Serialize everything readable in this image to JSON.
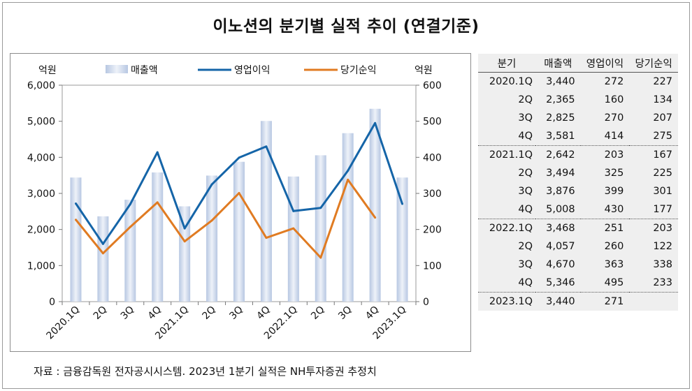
{
  "title": "이노션의 분기별 실적 추이 (연결기준)",
  "source": "자료 : 금융감독원 전자공시시스템. 2023년 1분기 실적은 NH투자증권 추정치",
  "chart_data": {
    "type": "bar+line",
    "categories": [
      "2020.1Q",
      "2Q",
      "3Q",
      "4Q",
      "2021.1Q",
      "2Q",
      "3Q",
      "4Q",
      "2022.1Q",
      "2Q",
      "3Q",
      "4Q",
      "2023.1Q"
    ],
    "left_axis": {
      "label": "억원",
      "min": 0,
      "max": 6000,
      "ticks": [
        "0",
        "1,000",
        "2,000",
        "3,000",
        "4,000",
        "5,000",
        "6,000"
      ]
    },
    "right_axis": {
      "label": "억원",
      "min": 0,
      "max": 600,
      "ticks": [
        "0",
        "100",
        "200",
        "300",
        "400",
        "500",
        "600"
      ]
    },
    "legend_position": "top",
    "grid": false,
    "series": [
      {
        "name": "매출액",
        "type": "bar",
        "axis": "left",
        "color": "#c9d6ea",
        "values": [
          3440,
          2365,
          2825,
          3581,
          2642,
          3494,
          3876,
          5008,
          3468,
          4057,
          4670,
          5346,
          3440
        ]
      },
      {
        "name": "영업이익",
        "type": "line",
        "axis": "right",
        "color": "#1565a8",
        "values": [
          272,
          160,
          270,
          414,
          203,
          325,
          399,
          430,
          251,
          260,
          363,
          495,
          271
        ]
      },
      {
        "name": "당기순익",
        "type": "line",
        "axis": "right",
        "color": "#e07b22",
        "values": [
          227,
          134,
          207,
          275,
          167,
          225,
          301,
          177,
          203,
          122,
          338,
          233,
          null
        ]
      }
    ]
  },
  "table": {
    "headers": [
      "분기",
      "매출액",
      "영업이익",
      "당기순익"
    ],
    "rows": [
      [
        "2020.1Q",
        "3,440",
        "272",
        "227"
      ],
      [
        "2Q",
        "2,365",
        "160",
        "134"
      ],
      [
        "3Q",
        "2,825",
        "270",
        "207"
      ],
      [
        "4Q",
        "3,581",
        "414",
        "275"
      ],
      [
        "2021.1Q",
        "2,642",
        "203",
        "167"
      ],
      [
        "2Q",
        "3,494",
        "325",
        "225"
      ],
      [
        "3Q",
        "3,876",
        "399",
        "301"
      ],
      [
        "4Q",
        "5,008",
        "430",
        "177"
      ],
      [
        "2022.1Q",
        "3,468",
        "251",
        "203"
      ],
      [
        "2Q",
        "4,057",
        "260",
        "122"
      ],
      [
        "3Q",
        "4,670",
        "363",
        "338"
      ],
      [
        "4Q",
        "5,346",
        "495",
        "233"
      ],
      [
        "2023.1Q",
        "3,440",
        "271",
        ""
      ]
    ]
  }
}
